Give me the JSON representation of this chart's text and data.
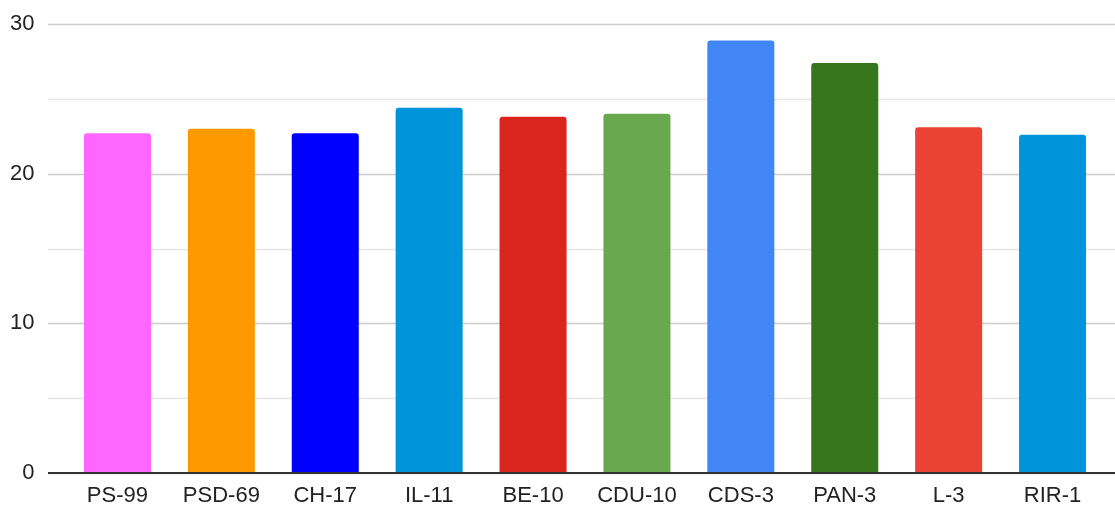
{
  "chart_data": {
    "type": "bar",
    "categories": [
      "PS-99",
      "PSD-69",
      "CH-17",
      "IL-11",
      "BE-10",
      "CDU-10",
      "CDS-3",
      "PAN-3",
      "L-3",
      "RIR-1"
    ],
    "values": [
      22.7,
      23.0,
      22.7,
      24.4,
      23.8,
      24.0,
      28.9,
      27.4,
      23.1,
      22.6
    ],
    "colors": [
      "#ff66ff",
      "#ff9900",
      "#0000ff",
      "#0094db",
      "#d9251d",
      "#6aa84f",
      "#4285f4",
      "#38761d",
      "#ea4335",
      "#0094db"
    ],
    "ylim": [
      0,
      30
    ],
    "yticks": [
      0,
      {
        "value": 5,
        "label": null
      },
      10,
      {
        "value": 15,
        "label": null
      },
      20,
      {
        "value": 25,
        "label": null
      },
      30
    ],
    "grid": "y"
  }
}
